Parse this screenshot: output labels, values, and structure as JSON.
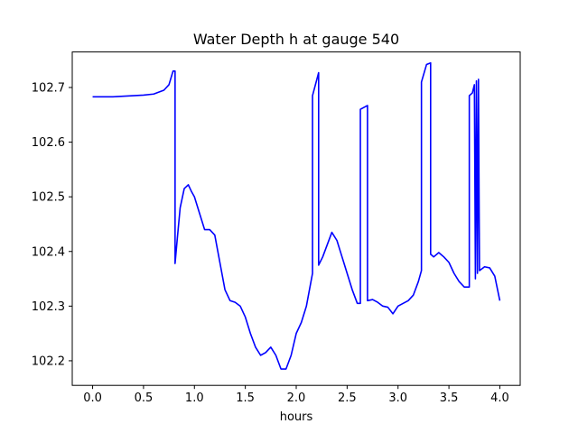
{
  "chart_data": {
    "type": "line",
    "title": "Water Depth h at gauge 540",
    "xlabel": "hours",
    "ylabel": "",
    "xlim": [
      -0.2,
      4.2
    ],
    "ylim": [
      102.155,
      102.765
    ],
    "xticks": [
      0.0,
      0.5,
      1.0,
      1.5,
      2.0,
      2.5,
      3.0,
      3.5,
      4.0
    ],
    "xtick_labels": [
      "0.0",
      "0.5",
      "1.0",
      "1.5",
      "2.0",
      "2.5",
      "3.0",
      "3.5",
      "4.0"
    ],
    "yticks": [
      102.2,
      102.3,
      102.4,
      102.5,
      102.6,
      102.7
    ],
    "ytick_labels": [
      "102.2",
      "102.3",
      "102.4",
      "102.5",
      "102.6",
      "102.7"
    ],
    "grid": false,
    "colors": {
      "line": "#0000ff"
    },
    "series": [
      {
        "x": [
          0.0,
          0.2,
          0.4,
          0.5,
          0.6,
          0.7,
          0.75,
          0.79,
          0.81,
          0.81,
          0.83,
          0.86,
          0.9,
          0.94,
          0.97,
          1.0,
          1.05,
          1.1,
          1.15,
          1.2,
          1.25,
          1.3,
          1.35,
          1.4,
          1.45,
          1.5,
          1.55,
          1.6,
          1.65,
          1.7,
          1.75,
          1.8,
          1.85,
          1.9,
          1.95,
          2.0,
          2.05,
          2.1,
          2.13,
          2.16,
          2.16,
          2.22,
          2.22,
          2.26,
          2.3,
          2.35,
          2.4,
          2.45,
          2.5,
          2.55,
          2.6,
          2.63,
          2.63,
          2.7,
          2.7,
          2.75,
          2.8,
          2.85,
          2.9,
          2.95,
          3.0,
          3.05,
          3.1,
          3.15,
          3.2,
          3.23,
          3.23,
          3.28,
          3.32,
          3.32,
          3.35,
          3.4,
          3.45,
          3.5,
          3.55,
          3.6,
          3.65,
          3.7,
          3.7,
          3.73,
          3.75,
          3.76,
          3.77,
          3.78,
          3.79,
          3.8,
          3.85,
          3.9,
          3.95,
          4.0
        ],
        "values": [
          102.683,
          102.683,
          102.685,
          102.686,
          102.688,
          102.695,
          102.705,
          102.73,
          102.73,
          102.378,
          102.42,
          102.48,
          102.515,
          102.522,
          102.51,
          102.5,
          102.47,
          102.44,
          102.44,
          102.43,
          102.38,
          102.33,
          102.31,
          102.307,
          102.3,
          102.28,
          102.25,
          102.225,
          102.21,
          102.215,
          102.225,
          102.21,
          102.185,
          102.185,
          102.21,
          102.25,
          102.27,
          102.3,
          102.33,
          102.36,
          102.685,
          102.727,
          102.375,
          102.39,
          102.41,
          102.435,
          102.42,
          102.39,
          102.36,
          102.33,
          102.305,
          102.305,
          102.66,
          102.667,
          102.31,
          102.312,
          102.307,
          102.3,
          102.298,
          102.286,
          102.3,
          102.305,
          102.31,
          102.32,
          102.345,
          102.365,
          102.71,
          102.742,
          102.745,
          102.395,
          102.39,
          102.398,
          102.39,
          102.38,
          102.36,
          102.345,
          102.335,
          102.335,
          102.685,
          102.69,
          102.705,
          102.35,
          102.712,
          102.36,
          102.715,
          102.365,
          102.372,
          102.37,
          102.355,
          102.31
        ]
      }
    ]
  }
}
